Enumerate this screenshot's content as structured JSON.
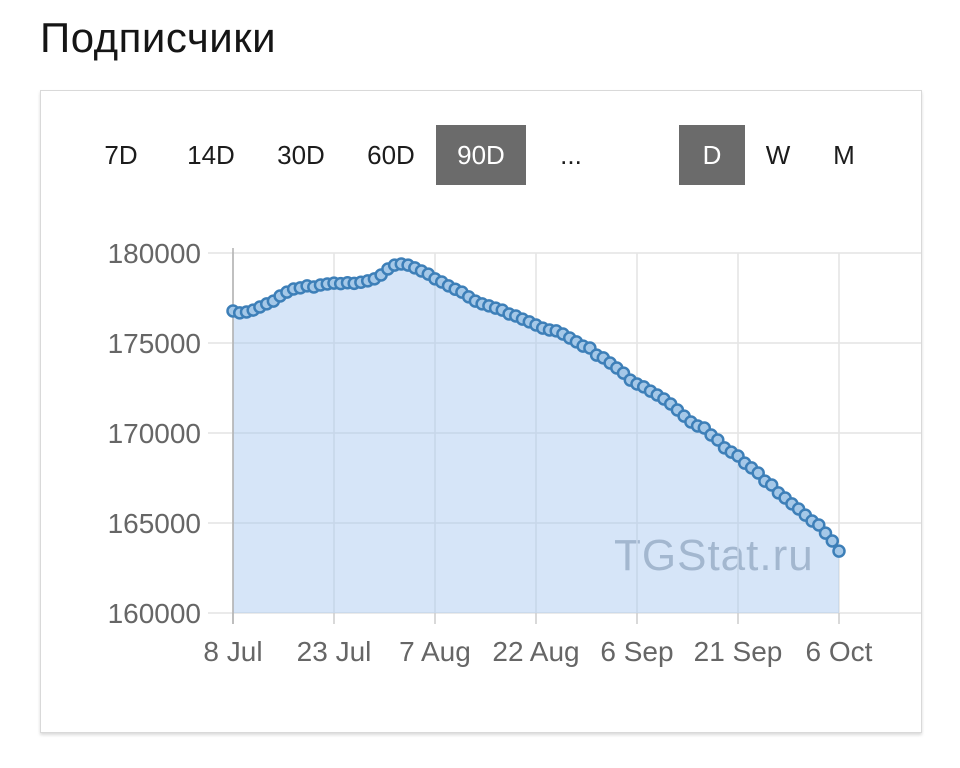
{
  "title": "Подписчики",
  "toolbar": {
    "ranges": [
      {
        "label": "7D",
        "active": false
      },
      {
        "label": "14D",
        "active": false
      },
      {
        "label": "30D",
        "active": false
      },
      {
        "label": "60D",
        "active": false
      },
      {
        "label": "90D",
        "active": true
      },
      {
        "label": "...",
        "active": false
      }
    ],
    "granularities": [
      {
        "label": "D",
        "active": true
      },
      {
        "label": "W",
        "active": false
      },
      {
        "label": "M",
        "active": false
      }
    ]
  },
  "watermark": "TGStat.ru",
  "colors": {
    "area": "rgba(165,198,240,0.45)",
    "line": "#4d8ec6",
    "marker_fill": "#a5c8e8",
    "marker_stroke": "#3d7fb8",
    "grid": "#e4e4e4",
    "axis": "#b0b0b0",
    "tick": "#cccccc",
    "axis_label": "#666666",
    "button_active_bg": "#6b6b6b",
    "watermark": "#a2abb5"
  },
  "chart_data": {
    "type": "area",
    "title": "Подписчики",
    "xlabel": "",
    "ylabel": "",
    "x_unit": "day",
    "x_range": [
      "8 Jul",
      "6 Oct"
    ],
    "x_tick_labels": [
      "8 Jul",
      "23 Jul",
      "7 Aug",
      "22 Aug",
      "6 Sep",
      "21 Sep",
      "6 Oct"
    ],
    "x_tick_positions": [
      0,
      15,
      30,
      45,
      60,
      75,
      90
    ],
    "y_ticks": [
      160000,
      165000,
      170000,
      175000,
      180000
    ],
    "ylim": [
      160000,
      180000
    ],
    "grid": true,
    "legend": false,
    "values": [
      176780,
      176670,
      176720,
      176830,
      177000,
      177170,
      177330,
      177610,
      177830,
      178000,
      178060,
      178170,
      178110,
      178220,
      178280,
      178330,
      178300,
      178350,
      178310,
      178380,
      178450,
      178560,
      178780,
      179110,
      179330,
      179390,
      179330,
      179170,
      179000,
      178830,
      178560,
      178390,
      178170,
      177990,
      177830,
      177560,
      177330,
      177170,
      177060,
      176940,
      176830,
      176610,
      176500,
      176330,
      176170,
      176000,
      175830,
      175720,
      175670,
      175500,
      175280,
      175060,
      174830,
      174720,
      174330,
      174170,
      173890,
      173610,
      173330,
      172940,
      172720,
      172560,
      172330,
      172110,
      171890,
      171610,
      171280,
      170940,
      170610,
      170390,
      170280,
      169890,
      169610,
      169170,
      168940,
      168720,
      168330,
      168060,
      167780,
      167330,
      167110,
      166670,
      166390,
      166060,
      165780,
      165440,
      165110,
      164890,
      164440,
      164000,
      163440
    ]
  }
}
